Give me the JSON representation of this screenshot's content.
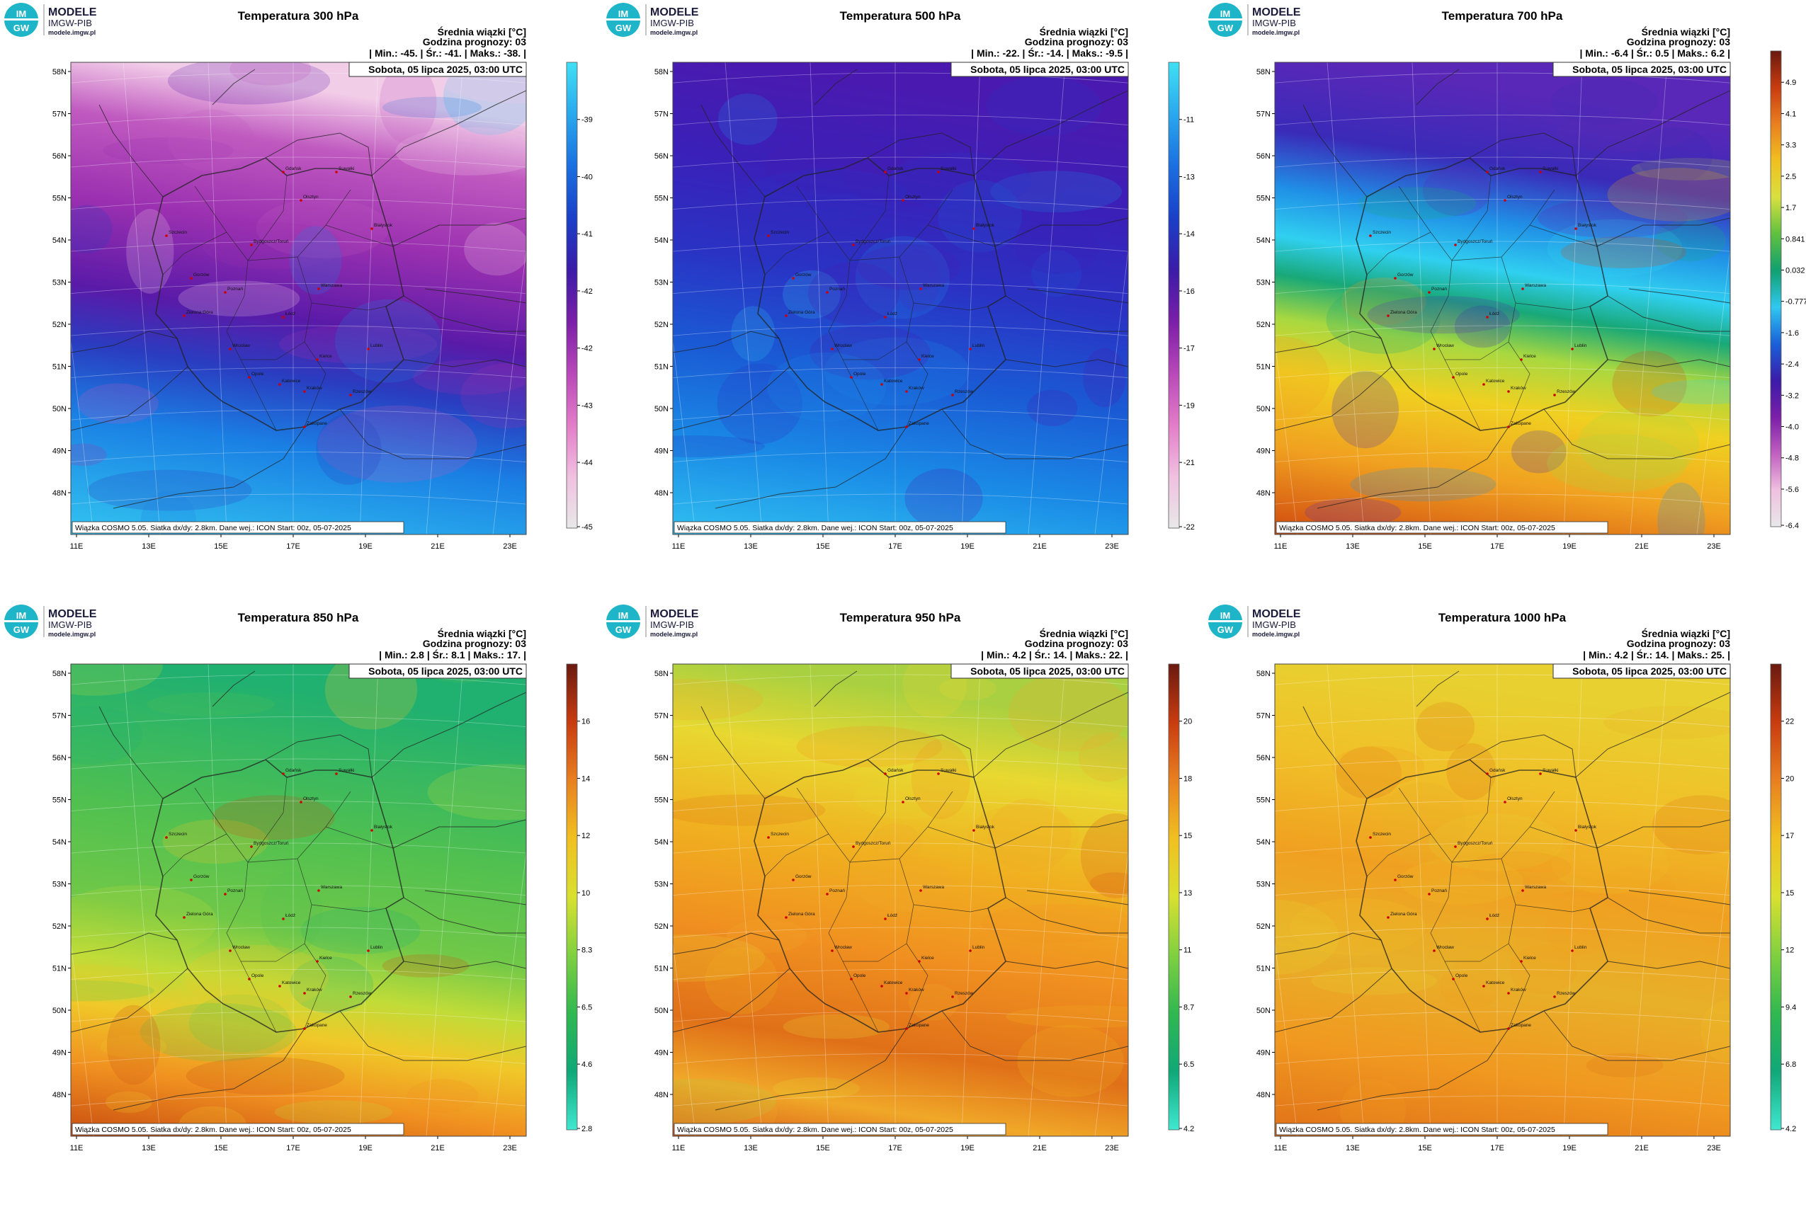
{
  "logo": {
    "imgw_top": "IM",
    "imgw_bottom": "GW",
    "brand_title": "MODELE",
    "brand_sub": "IMGW-PIB",
    "brand_url": "modele.imgw.pl"
  },
  "common": {
    "mean_label": "Średnia wiązki [°C]",
    "forecast_hour": "Godzina prognozy: 03",
    "valid_time": "Sobota, 05 lipca 2025, 03:00 UTC",
    "footer": "Wiązka COSMO 5.05. Siatka dx/dy: 2.8km. Dane wej.: ICON Start: 00z, 05-07-2025",
    "min_label": "Min.:",
    "mean_short": "Śr.:",
    "max_label": "Maks.:",
    "lat_ticks": [
      "58N",
      "57N",
      "56N",
      "55N",
      "54N",
      "53N",
      "52N",
      "51N",
      "50N",
      "49N",
      "48N"
    ],
    "lon_ticks": [
      "11E",
      "13E",
      "15E",
      "17E",
      "19E",
      "21E",
      "23E"
    ]
  },
  "panels": [
    {
      "title": "Temperatura 300 hPa",
      "min": "-45.",
      "mean": "-41.",
      "max": "-38.",
      "colors": [
        "#3ad0f4",
        "#2aa8ee",
        "#1a6fe0",
        "#2a2bb8",
        "#4a1a9e",
        "#7a1ea8",
        "#a83cb8",
        "#d272c8",
        "#eebfe4"
      ],
      "colorbar_colors": [
        "#e8e8e8",
        "#f0c0e0",
        "#e27cc8",
        "#b848b8",
        "#7a1ea8",
        "#3a1ca8",
        "#1a40c8",
        "#1a70e0",
        "#2aa8ee",
        "#40e0f4"
      ],
      "ticks": [
        "-39",
        "-40",
        "-41",
        "-42",
        "-42",
        "-43",
        "-44",
        "-45"
      ],
      "field_stops": [
        {
          "offset": 0.0,
          "color": "#f2cde8"
        },
        {
          "offset": 0.12,
          "color": "#c05ac0"
        },
        {
          "offset": 0.3,
          "color": "#9a30b0"
        },
        {
          "offset": 0.48,
          "color": "#5a1aa8"
        },
        {
          "offset": 0.6,
          "color": "#2a3cc0"
        },
        {
          "offset": 0.75,
          "color": "#1a80e4"
        },
        {
          "offset": 1.0,
          "color": "#32c4f0"
        }
      ]
    },
    {
      "title": "Temperatura 500 hPa",
      "min": "-22.",
      "mean": "-14.",
      "max": "-9.5",
      "colors": [
        "#3ad0f4",
        "#1a6fe0",
        "#2a2bb8"
      ],
      "colorbar_colors": [
        "#e8e8e8",
        "#f0c0e0",
        "#e27cc8",
        "#b848b8",
        "#7a1ea8",
        "#3a1ca8",
        "#1a40c8",
        "#1a70e0",
        "#2aa8ee",
        "#40e0f4"
      ],
      "ticks": [
        "-11",
        "-13",
        "-14",
        "-16",
        "-17",
        "-19",
        "-21",
        "-22"
      ],
      "field_stops": [
        {
          "offset": 0.0,
          "color": "#4a1ab0"
        },
        {
          "offset": 0.2,
          "color": "#3a20b8"
        },
        {
          "offset": 0.4,
          "color": "#2a32c4"
        },
        {
          "offset": 0.6,
          "color": "#1a5ad4"
        },
        {
          "offset": 0.8,
          "color": "#1a8ae6"
        },
        {
          "offset": 1.0,
          "color": "#30c0f0"
        }
      ]
    },
    {
      "title": "Temperatura 700 hPa",
      "min": "-6.4",
      "mean": "0.5",
      "max": "6.2",
      "colors": [],
      "colorbar_colors": [
        "#e8e8e8",
        "#f0c0e0",
        "#c060c0",
        "#7a1ea8",
        "#3a1ca8",
        "#1a60d8",
        "#30c8f0",
        "#10a070",
        "#60c040",
        "#d8e040",
        "#f0c020",
        "#e88020",
        "#c83c10",
        "#6a1a10"
      ],
      "ticks": [
        "4.9",
        "4.1",
        "3.3",
        "2.5",
        "1.7",
        "0.841",
        "0.032",
        "-0.777",
        "-1.6",
        "-2.4",
        "-3.2",
        "-4.0",
        "-4.8",
        "-5.6",
        "-6.4"
      ],
      "field_stops": [
        {
          "offset": 0.0,
          "color": "#5a28b8"
        },
        {
          "offset": 0.16,
          "color": "#3a2ab8"
        },
        {
          "offset": 0.28,
          "color": "#2090e6"
        },
        {
          "offset": 0.38,
          "color": "#30d0f0"
        },
        {
          "offset": 0.46,
          "color": "#18a878"
        },
        {
          "offset": 0.55,
          "color": "#a8d840"
        },
        {
          "offset": 0.66,
          "color": "#f0d020"
        },
        {
          "offset": 0.82,
          "color": "#f0a020"
        },
        {
          "offset": 1.0,
          "color": "#d04a10"
        }
      ]
    },
    {
      "title": "Temperatura 850 hPa",
      "min": "2.8",
      "mean": "8.1",
      "max": "17.",
      "colors": [],
      "colorbar_colors": [
        "#40e8d0",
        "#10a878",
        "#30b850",
        "#80d040",
        "#d8e030",
        "#f0c020",
        "#e88020",
        "#c83c10",
        "#6a1a10"
      ],
      "ticks": [
        "16",
        "14",
        "12",
        "10",
        "8.3",
        "6.5",
        "4.6",
        "2.8"
      ],
      "field_stops": [
        {
          "offset": 0.0,
          "color": "#20b070"
        },
        {
          "offset": 0.3,
          "color": "#50c050"
        },
        {
          "offset": 0.5,
          "color": "#70c848"
        },
        {
          "offset": 0.62,
          "color": "#c0dc38"
        },
        {
          "offset": 0.72,
          "color": "#f0c828"
        },
        {
          "offset": 0.85,
          "color": "#f09020"
        },
        {
          "offset": 1.0,
          "color": "#c84c10"
        }
      ]
    },
    {
      "title": "Temperatura 950 hPa",
      "min": "4.2",
      "mean": "14.",
      "max": "22.",
      "colors": [],
      "colorbar_colors": [
        "#40e8d0",
        "#10a878",
        "#30b850",
        "#80d040",
        "#d8e030",
        "#f0c020",
        "#e88020",
        "#c83c10",
        "#6a1a10"
      ],
      "ticks": [
        "20",
        "18",
        "15",
        "13",
        "11",
        "8.7",
        "6.5",
        "4.2"
      ],
      "field_stops": [
        {
          "offset": 0.0,
          "color": "#a8d040"
        },
        {
          "offset": 0.15,
          "color": "#e8d830"
        },
        {
          "offset": 0.35,
          "color": "#f0b020"
        },
        {
          "offset": 0.55,
          "color": "#f09020"
        },
        {
          "offset": 0.75,
          "color": "#e07018"
        },
        {
          "offset": 0.88,
          "color": "#f0a828"
        },
        {
          "offset": 1.0,
          "color": "#d85818"
        }
      ]
    },
    {
      "title": "Temperatura 1000 hPa",
      "min": "4.2",
      "mean": "14.",
      "max": "25.",
      "colors": [],
      "colorbar_colors": [
        "#40e8d0",
        "#10a878",
        "#30b850",
        "#80d040",
        "#d8e030",
        "#f0c020",
        "#e88020",
        "#c83c10",
        "#6a1a10"
      ],
      "ticks": [
        "22",
        "20",
        "17",
        "15",
        "12",
        "9.4",
        "6.8",
        "4.2"
      ],
      "field_stops": [
        {
          "offset": 0.0,
          "color": "#e8d030"
        },
        {
          "offset": 0.2,
          "color": "#f0c028"
        },
        {
          "offset": 0.4,
          "color": "#f0a020"
        },
        {
          "offset": 0.6,
          "color": "#e8b028"
        },
        {
          "offset": 0.8,
          "color": "#f09820"
        },
        {
          "offset": 1.0,
          "color": "#e07018"
        }
      ]
    }
  ],
  "cities": [
    "Gdańsk",
    "Suwałki",
    "Olsztyn",
    "Białystok",
    "Szczecin",
    "Bydgoszcz/Toruń",
    "Gorzów",
    "Poznań",
    "Warszawa",
    "Zielona Góra",
    "Łódź",
    "Lublin",
    "Wrocław",
    "Kielce",
    "Opole",
    "Katowice",
    "Kraków",
    "Rzeszów",
    "Zakopane"
  ]
}
